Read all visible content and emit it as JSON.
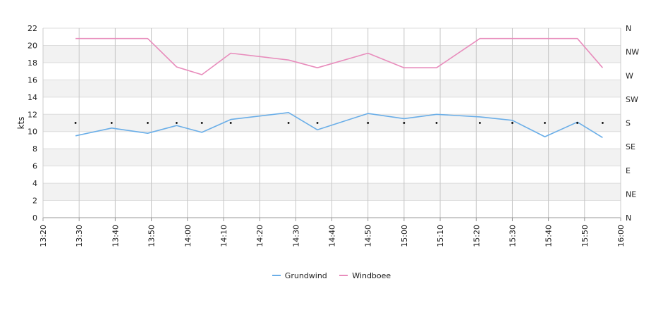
{
  "chart_data": {
    "type": "line",
    "ylabel": "kts",
    "ylim": [
      0,
      22
    ],
    "y_ticks": [
      "0",
      "2",
      "4",
      "6",
      "8",
      "10",
      "12",
      "14",
      "16",
      "18",
      "20",
      "22"
    ],
    "y2_ticks": [
      "N",
      "NE",
      "E",
      "SE",
      "S",
      "SW",
      "W",
      "NW",
      "N"
    ],
    "x_ticks": [
      "13:20",
      "13:30",
      "13:40",
      "13:50",
      "14:00",
      "14:10",
      "14:20",
      "14:30",
      "14:40",
      "14:50",
      "15:00",
      "15:10",
      "15:20",
      "15:30",
      "15:40",
      "15:50",
      "16:00"
    ],
    "xlim": [
      "13:20",
      "16:00"
    ],
    "grid": true,
    "legend_position": "bottom",
    "series": [
      {
        "name": "Grundwind",
        "color": "#6aaee8",
        "x": [
          "13:29",
          "13:39",
          "13:49",
          "13:57",
          "14:04",
          "14:12",
          "14:28",
          "14:36",
          "14:50",
          "15:00",
          "15:09",
          "15:21",
          "15:30",
          "15:39",
          "15:48",
          "15:55"
        ],
        "values": [
          9.5,
          10.4,
          9.8,
          10.7,
          9.9,
          11.4,
          12.2,
          10.2,
          12.1,
          11.5,
          12.0,
          11.7,
          11.3,
          9.4,
          11.1,
          9.3
        ]
      },
      {
        "name": "Windboee",
        "color": "#e88cbc",
        "x": [
          "13:29",
          "13:39",
          "13:49",
          "13:57",
          "14:04",
          "14:12",
          "14:28",
          "14:36",
          "14:50",
          "15:00",
          "15:09",
          "15:21",
          "15:30",
          "15:39",
          "15:48",
          "15:55"
        ],
        "values": [
          20.8,
          20.8,
          20.8,
          17.5,
          16.6,
          19.1,
          18.3,
          17.4,
          19.1,
          17.4,
          17.4,
          20.8,
          20.8,
          20.8,
          20.8,
          17.4
        ]
      }
    ],
    "direction_markers": {
      "name": "direction",
      "x": [
        "13:29",
        "13:39",
        "13:49",
        "13:57",
        "14:04",
        "14:12",
        "14:28",
        "14:36",
        "14:50",
        "15:00",
        "15:09",
        "15:21",
        "15:30",
        "15:39",
        "15:48",
        "15:55"
      ],
      "values": [
        "S",
        "S",
        "S",
        "S",
        "S",
        "S",
        "S",
        "S",
        "S",
        "S",
        "S",
        "S",
        "S",
        "S",
        "S",
        "S"
      ]
    }
  }
}
